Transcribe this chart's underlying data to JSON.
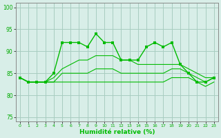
{
  "xlabel": "Humidité relative (%)",
  "bg_color": "#d8eee8",
  "grid_color": "#a8ccc0",
  "line_color": "#00bb00",
  "xlim": [
    -0.5,
    23.5
  ],
  "ylim": [
    74,
    101
  ],
  "yticks": [
    75,
    80,
    85,
    90,
    95,
    100
  ],
  "xticks": [
    0,
    1,
    2,
    3,
    4,
    5,
    6,
    7,
    8,
    9,
    10,
    11,
    12,
    13,
    14,
    15,
    16,
    17,
    18,
    19,
    20,
    21,
    22,
    23
  ],
  "series": [
    [
      84,
      83,
      83,
      83,
      85,
      92,
      92,
      92,
      91,
      94,
      92,
      92,
      88,
      88,
      88,
      91,
      92,
      91,
      92,
      87,
      85,
      83,
      83,
      84
    ],
    [
      84,
      83,
      83,
      83,
      84,
      86,
      87,
      88,
      88,
      89,
      89,
      89,
      88,
      88,
      87,
      87,
      87,
      87,
      87,
      87,
      86,
      85,
      84,
      84
    ],
    [
      84,
      83,
      83,
      83,
      83,
      85,
      85,
      85,
      85,
      86,
      86,
      86,
      85,
      85,
      85,
      85,
      85,
      85,
      86,
      86,
      85,
      84,
      83,
      84
    ],
    [
      84,
      83,
      83,
      83,
      83,
      83,
      83,
      83,
      83,
      83,
      83,
      83,
      83,
      83,
      83,
      83,
      83,
      83,
      84,
      84,
      84,
      83,
      82,
      83
    ]
  ]
}
